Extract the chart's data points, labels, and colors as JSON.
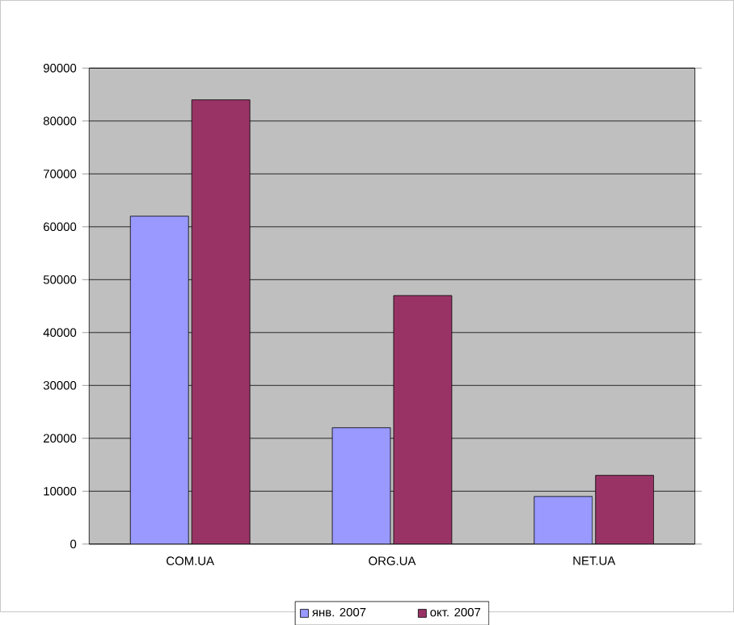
{
  "chart_data": {
    "type": "bar",
    "categories": [
      "COM.UA",
      "ORG.UA",
      "NET.UA"
    ],
    "series": [
      {
        "name": "янв. 2007",
        "color": "#9999ff",
        "values": [
          62000,
          22000,
          9000
        ]
      },
      {
        "name": "окт. 2007",
        "color": "#993366",
        "values": [
          84000,
          47000,
          13000
        ]
      }
    ],
    "ylim": [
      0,
      90000
    ],
    "yticks": [
      0,
      10000,
      20000,
      30000,
      40000,
      50000,
      60000,
      70000,
      80000,
      90000
    ],
    "grid": "y",
    "legend": "bottom"
  }
}
